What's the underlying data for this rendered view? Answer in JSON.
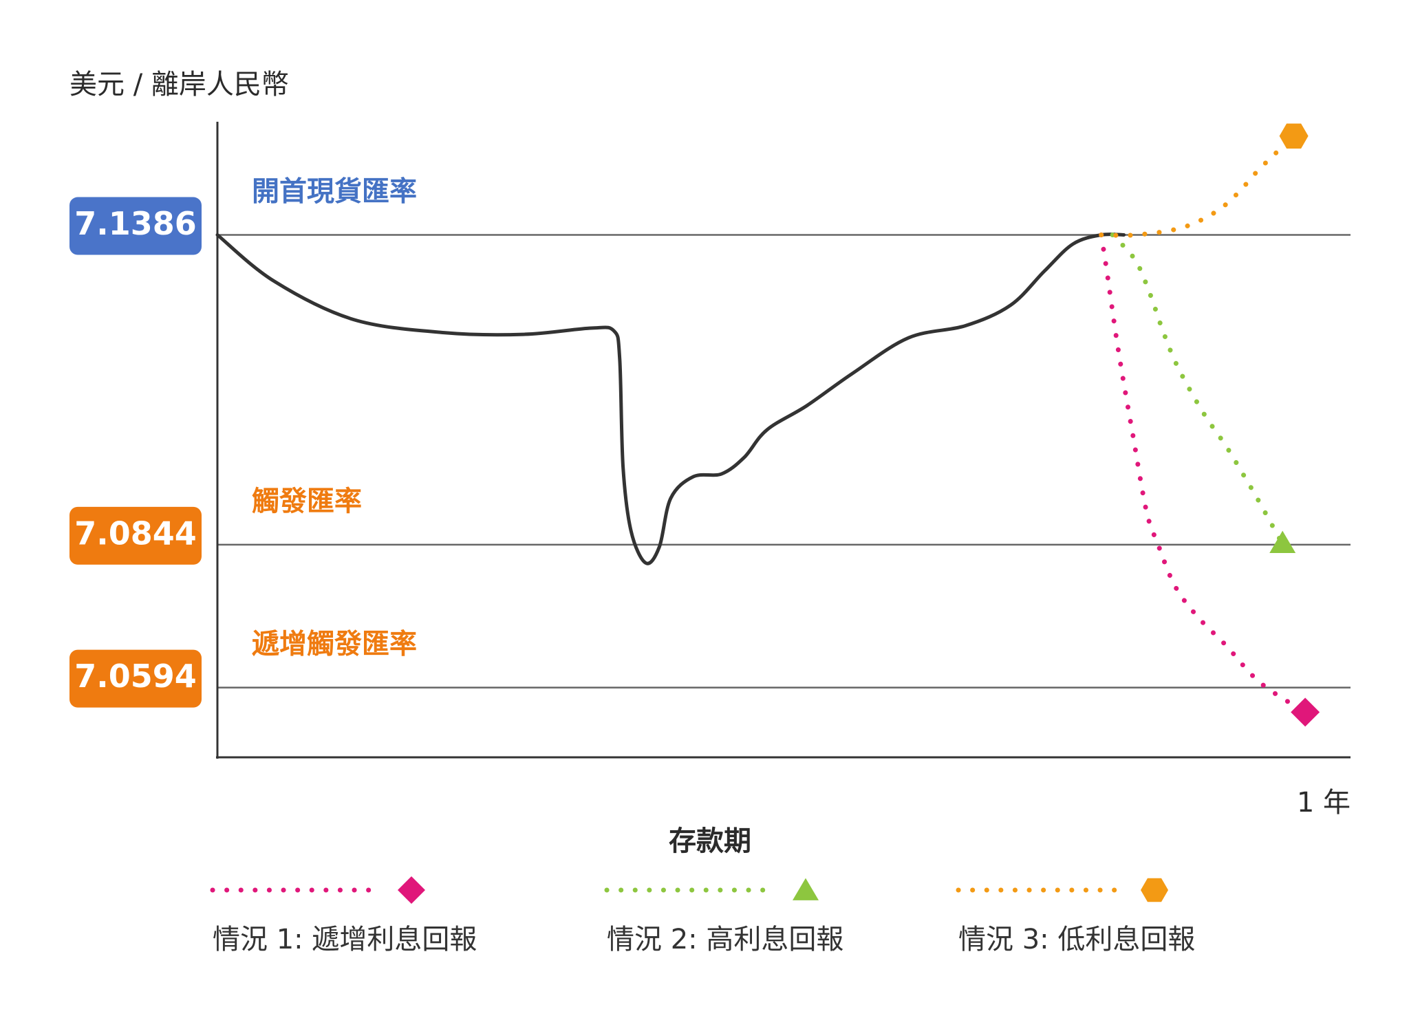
{
  "chart_data": {
    "type": "line",
    "ylabel": "美元 / 離岸人民幣",
    "xlabel": "存款期",
    "x_end_label": "1 年",
    "ylim": [
      7.0472,
      7.1584
    ],
    "xlim": [
      0,
      1
    ],
    "reference_lines": [
      {
        "label": "開首現貨匯率",
        "value": 7.1386,
        "value_label": "7.1386",
        "color": "#4472c4",
        "badge_color": "#4a74c9"
      },
      {
        "label": "觸發匯率",
        "value": 7.0844,
        "value_label": "7.0844",
        "color": "#ef7b10",
        "badge_color": "#ef7b10"
      },
      {
        "label": "遞增觸發匯率",
        "value": 7.0594,
        "value_label": "7.0594",
        "color": "#ef7b10",
        "badge_color": "#ef7b10"
      }
    ],
    "price_path": {
      "color": "#333333",
      "x": [
        0,
        0.05,
        0.12,
        0.2,
        0.27,
        0.33,
        0.35,
        0.355,
        0.358,
        0.365,
        0.378,
        0.39,
        0.4,
        0.42,
        0.445,
        0.465,
        0.485,
        0.52,
        0.56,
        0.61,
        0.66,
        0.7,
        0.73,
        0.755,
        0.78,
        0.8
      ],
      "y": [
        7.1386,
        7.1305,
        7.1238,
        7.1215,
        7.1212,
        7.1223,
        7.1218,
        7.117,
        7.098,
        7.0868,
        7.0812,
        7.084,
        7.0925,
        7.0963,
        7.0968,
        7.0997,
        7.1045,
        7.1087,
        7.1143,
        7.1206,
        7.1227,
        7.1263,
        7.1323,
        7.137,
        7.1386,
        7.1386
      ]
    },
    "series": [
      {
        "name": "情況 1: 遞增利息回報",
        "color": "#e0177a",
        "marker": "diamond",
        "x": [
          0.78,
          0.785,
          0.795,
          0.808,
          0.82,
          0.83,
          0.845,
          0.865,
          0.89,
          0.92,
          0.96
        ],
        "y": [
          7.1386,
          7.1322,
          7.1185,
          7.1035,
          7.0902,
          7.0845,
          7.0772,
          7.0718,
          7.0668,
          7.0603,
          7.0551
        ]
      },
      {
        "name": "情況 2: 高利息回報",
        "color": "#8dc63f",
        "marker": "triangle",
        "x": [
          0.79,
          0.81,
          0.823,
          0.835,
          0.848,
          0.87,
          0.89,
          0.905,
          0.92,
          0.94
        ],
        "y": [
          7.1386,
          7.1342,
          7.1283,
          7.1215,
          7.1153,
          7.1075,
          7.1017,
          7.0968,
          7.0917,
          7.0845
        ]
      },
      {
        "name": "情況 3: 低利息回報",
        "color": "#f39a14",
        "marker": "hexagon",
        "x": [
          0.78,
          0.81,
          0.85,
          0.88,
          0.9,
          0.92,
          0.95
        ],
        "y": [
          7.1386,
          7.1386,
          7.1398,
          7.1425,
          7.1458,
          7.1502,
          7.1559
        ]
      }
    ]
  }
}
